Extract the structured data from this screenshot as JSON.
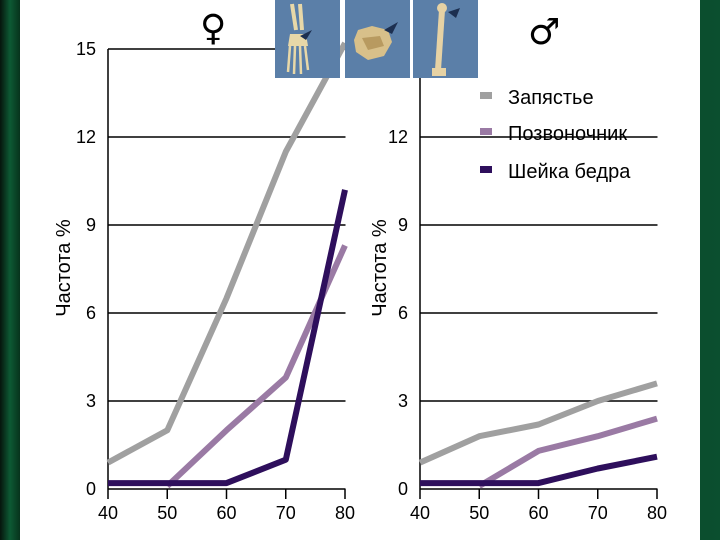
{
  "panels": {
    "female_symbol": "♀",
    "male_symbol": "♂"
  },
  "thumbnails": {
    "wrist_icon": "wrist-bone-icon",
    "spine_icon": "vertebra-icon",
    "hip_icon": "femur-icon",
    "background_color": "#5b7fa8"
  },
  "colors": {
    "wrist": "#a0a0a0",
    "spine": "#9a7aa4",
    "hip": "#2e0f5c"
  },
  "chart_data": [
    {
      "type": "line",
      "panel": "female",
      "x": [
        40,
        50,
        60,
        70,
        80
      ],
      "xlim": [
        40,
        80
      ],
      "ylim": [
        0,
        15
      ],
      "xticks": [
        40,
        50,
        60,
        70,
        80
      ],
      "yticks": [
        0,
        3,
        6,
        9,
        12,
        15
      ],
      "ylabel": "Частота %",
      "grid": "horizontal",
      "series": [
        {
          "name": "Запястье",
          "x": [
            40,
            50,
            60,
            70,
            80
          ],
          "values": [
            0.9,
            2.0,
            6.5,
            11.5,
            15.2
          ]
        },
        {
          "name": "Позвоночник",
          "x": [
            50,
            60,
            70,
            80
          ],
          "values": [
            0.1,
            2.0,
            3.8,
            8.3
          ]
        },
        {
          "name": "Шейка бедра",
          "x": [
            40,
            50,
            60,
            70,
            80
          ],
          "values": [
            0.2,
            0.2,
            0.2,
            1.0,
            10.2
          ]
        }
      ]
    },
    {
      "type": "line",
      "panel": "male",
      "x": [
        40,
        50,
        60,
        70,
        80
      ],
      "xlim": [
        40,
        80
      ],
      "ylim": [
        0,
        15
      ],
      "xticks": [
        40,
        50,
        60,
        70,
        80
      ],
      "yticks": [
        0,
        3,
        6,
        9,
        12
      ],
      "ylabel": "Частота %",
      "grid": "horizontal",
      "legend": "top-right",
      "series": [
        {
          "name": "Запястье",
          "x": [
            40,
            50,
            60,
            70,
            80
          ],
          "values": [
            0.9,
            1.8,
            2.2,
            3.0,
            3.6
          ]
        },
        {
          "name": "Позвоночник",
          "x": [
            50,
            60,
            70,
            80
          ],
          "values": [
            0.1,
            1.3,
            1.8,
            2.4
          ]
        },
        {
          "name": "Шейка бедра",
          "x": [
            40,
            50,
            60,
            70,
            80
          ],
          "values": [
            0.2,
            0.2,
            0.2,
            0.7,
            1.1
          ]
        }
      ]
    }
  ]
}
